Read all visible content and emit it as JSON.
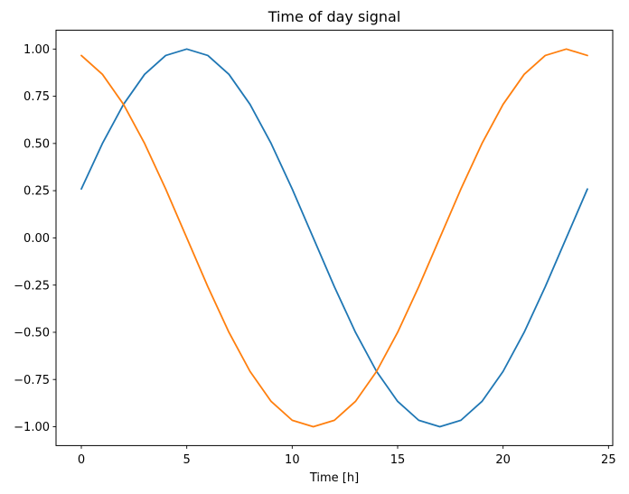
{
  "chart_data": {
    "type": "line",
    "title": "Time of day signal",
    "xlabel": "Time [h]",
    "ylabel": "",
    "grid": false,
    "legend": "none",
    "background": "#ffffff",
    "spine_color": "#000000",
    "text_color": "#000000",
    "xlim": [
      -1.2,
      25.2
    ],
    "ylim": [
      -1.1,
      1.1
    ],
    "xticks": [
      {
        "value": 0,
        "label": "0"
      },
      {
        "value": 5,
        "label": "5"
      },
      {
        "value": 10,
        "label": "10"
      },
      {
        "value": 15,
        "label": "15"
      },
      {
        "value": 20,
        "label": "20"
      },
      {
        "value": 25,
        "label": "25"
      }
    ],
    "yticks": [
      {
        "value": -1.0,
        "label": "−1.00"
      },
      {
        "value": -0.75,
        "label": "−0.75"
      },
      {
        "value": -0.5,
        "label": "−0.50"
      },
      {
        "value": -0.25,
        "label": "−0.25"
      },
      {
        "value": 0.0,
        "label": "0.00"
      },
      {
        "value": 0.25,
        "label": "0.25"
      },
      {
        "value": 0.5,
        "label": "0.50"
      },
      {
        "value": 0.75,
        "label": "0.75"
      },
      {
        "value": 1.0,
        "label": "1.00"
      }
    ],
    "x": [
      0,
      1,
      2,
      3,
      4,
      5,
      6,
      7,
      8,
      9,
      10,
      11,
      12,
      13,
      14,
      15,
      16,
      17,
      18,
      19,
      20,
      21,
      22,
      23,
      24
    ],
    "series": [
      {
        "name": "blue-line",
        "color": "#1f77b4",
        "values": [
          0.2588,
          0.5,
          0.7071,
          0.866,
          0.9659,
          1.0,
          0.9659,
          0.866,
          0.7071,
          0.5,
          0.2588,
          0.0,
          -0.2588,
          -0.5,
          -0.7071,
          -0.866,
          -0.9659,
          -1.0,
          -0.9659,
          -0.866,
          -0.7071,
          -0.5,
          -0.2588,
          0.0,
          0.2588
        ]
      },
      {
        "name": "orange-line",
        "color": "#ff7f0e",
        "values": [
          0.9659,
          0.866,
          0.7071,
          0.5,
          0.2588,
          0.0,
          -0.2588,
          -0.5,
          -0.7071,
          -0.866,
          -0.9659,
          -1.0,
          -0.9659,
          -0.866,
          -0.7071,
          -0.5,
          -0.2588,
          0.0,
          0.2588,
          0.5,
          0.7071,
          0.866,
          0.9659,
          1.0,
          0.9659
        ]
      }
    ]
  }
}
